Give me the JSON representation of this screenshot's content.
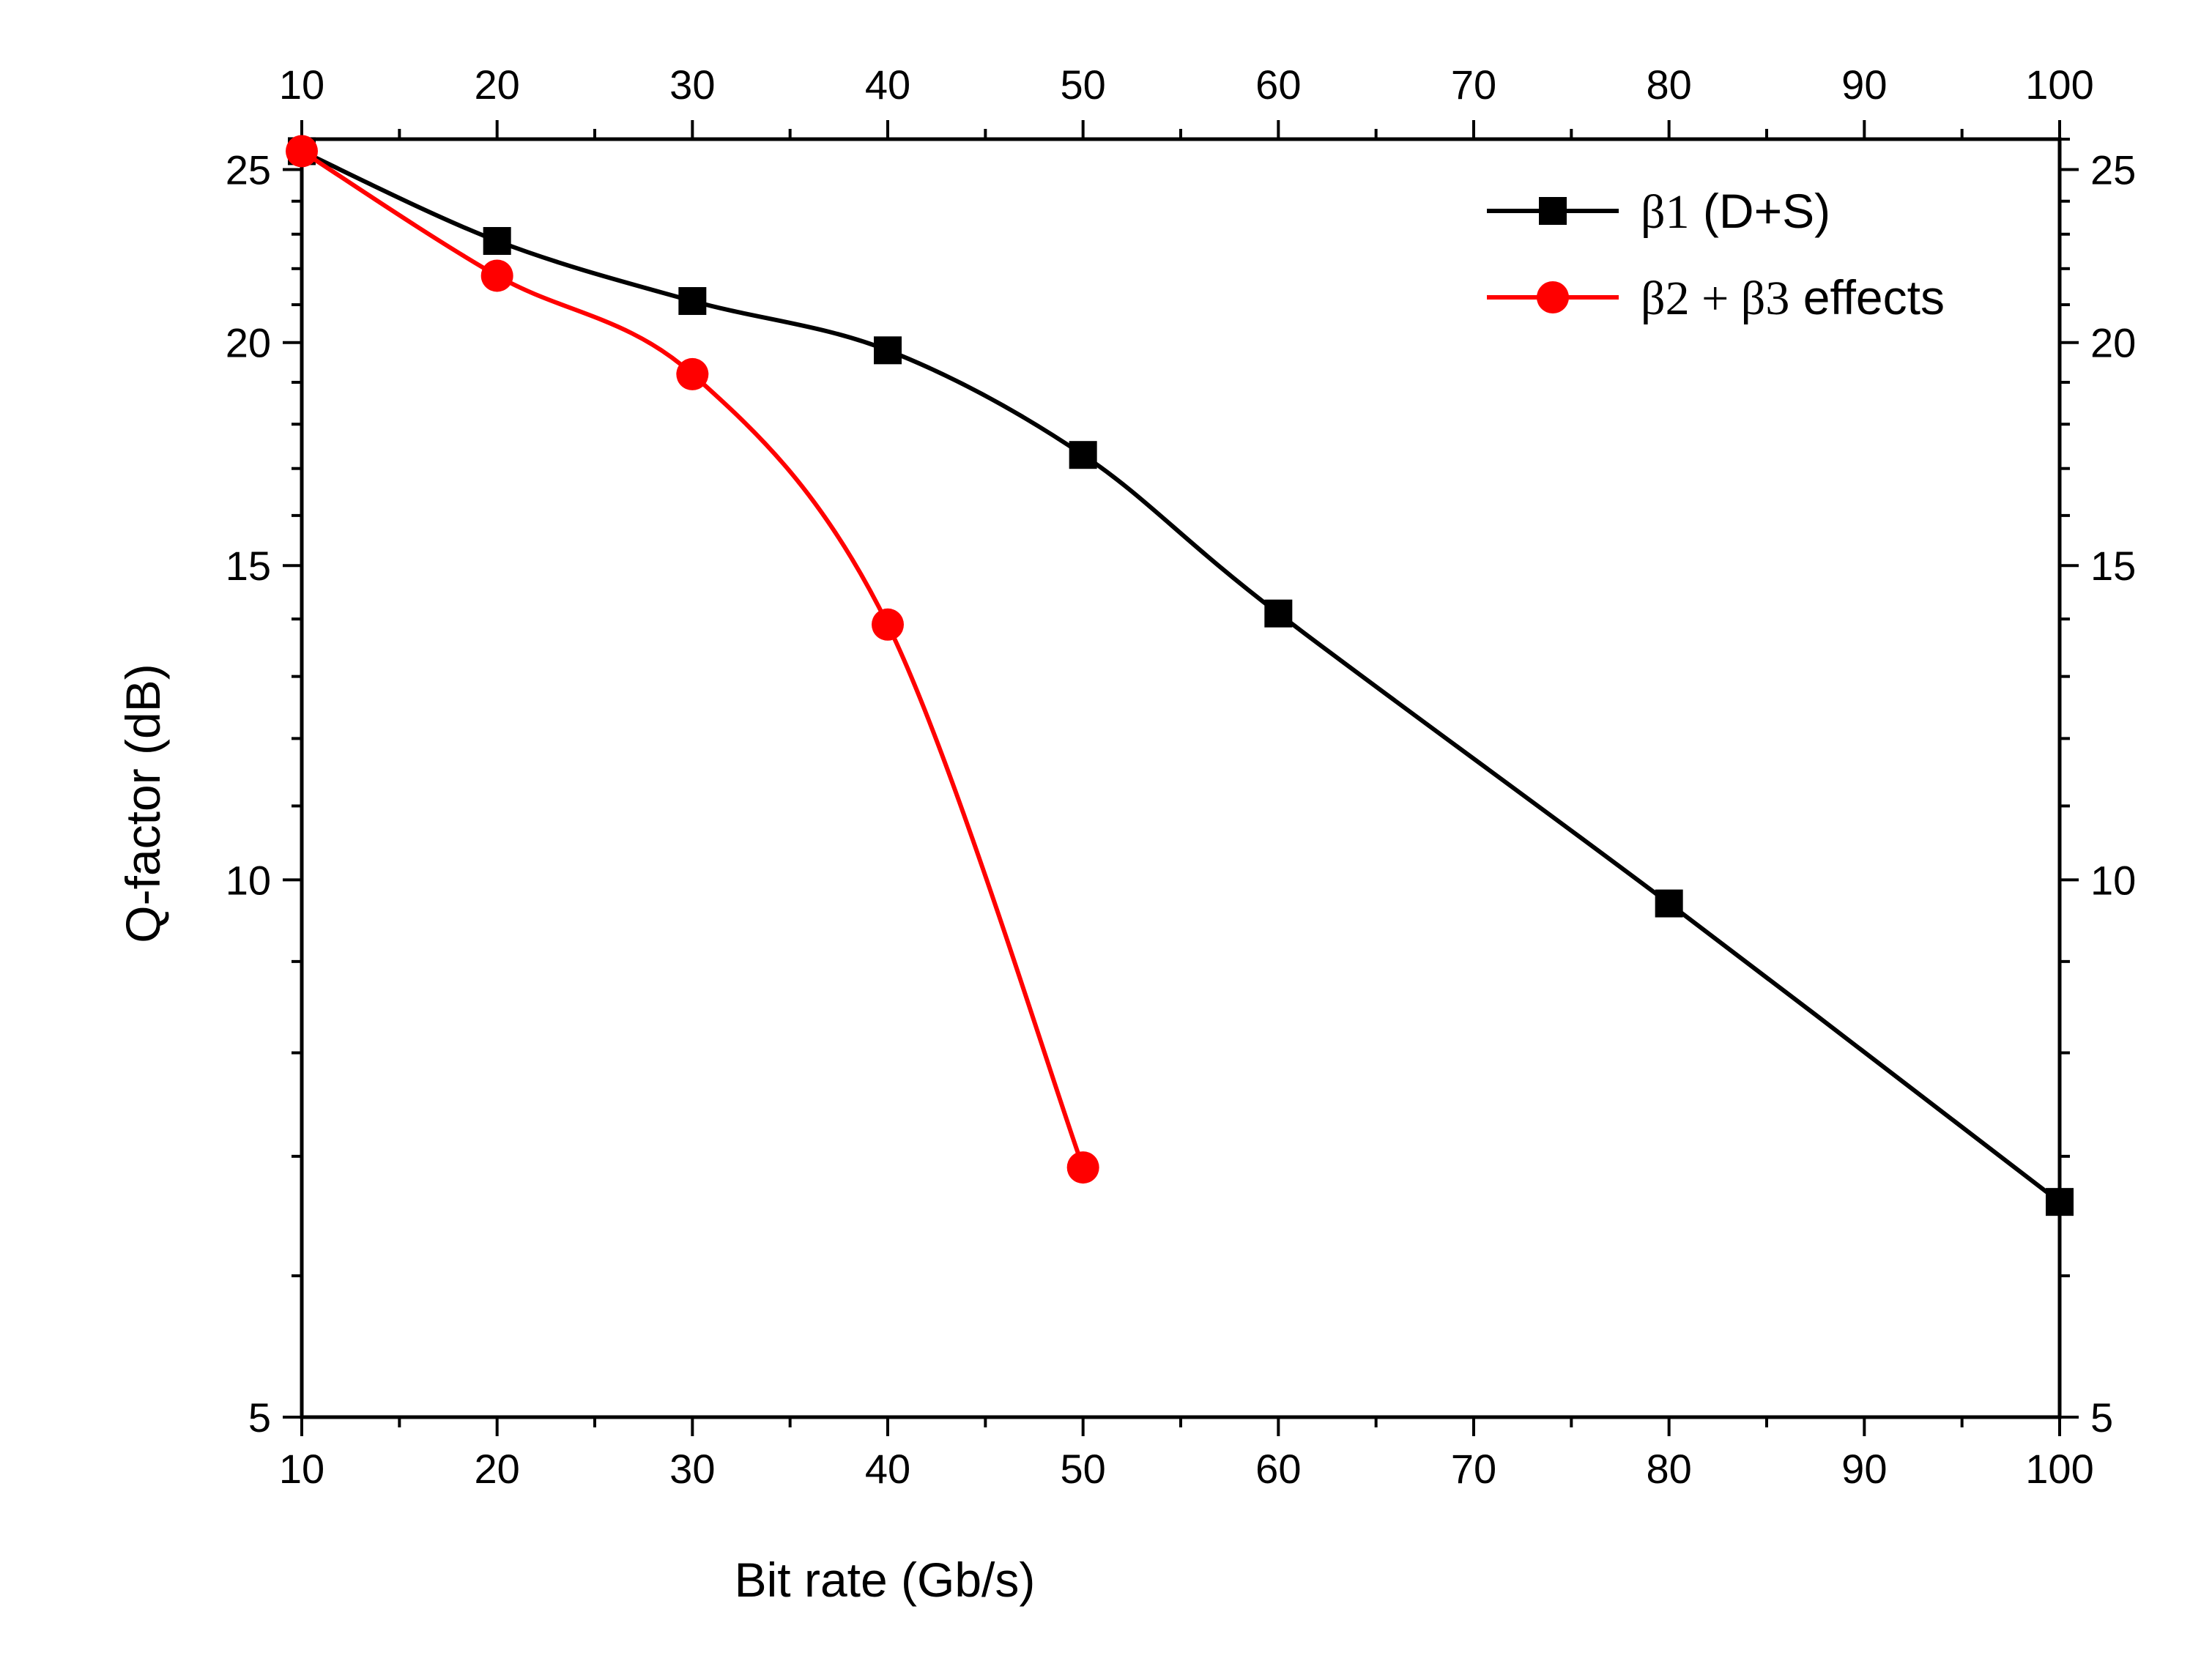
{
  "chart_data": {
    "type": "line",
    "title": "",
    "xlabel": "Bit rate (Gb/s)",
    "ylabel": "Q-factor (dB)",
    "xlim": [
      10,
      100
    ],
    "ylim": [
      5,
      26
    ],
    "yscale": "log",
    "x_ticks": [
      10,
      20,
      30,
      40,
      50,
      60,
      70,
      80,
      90,
      100
    ],
    "x_tick_labels": [
      "10",
      "20",
      "30",
      "40",
      "50",
      "60",
      "70",
      "80",
      "90",
      "100"
    ],
    "y_ticks": [
      5,
      10,
      15,
      20,
      25
    ],
    "y_tick_labels": [
      "5",
      "10",
      "15",
      "20",
      "25"
    ],
    "mirror_axes": true,
    "legend_position": "top-right",
    "series": [
      {
        "name": "β1 (D+S)",
        "legend_greek": "β1",
        "legend_rest": " (D+S)",
        "color": "#000000",
        "marker": "square",
        "x": [
          10,
          20,
          30,
          40,
          50,
          60,
          80,
          100
        ],
        "y": [
          25.6,
          22.8,
          21.1,
          19.8,
          17.3,
          14.1,
          9.7,
          6.6
        ]
      },
      {
        "name": "β2 + β3 effects",
        "legend_greek": "β2 + β3",
        "legend_rest": " effects",
        "color": "#ff0000",
        "marker": "circle",
        "x": [
          10,
          20,
          30,
          40,
          50
        ],
        "y": [
          25.6,
          21.8,
          19.2,
          13.9,
          6.9
        ]
      }
    ]
  }
}
